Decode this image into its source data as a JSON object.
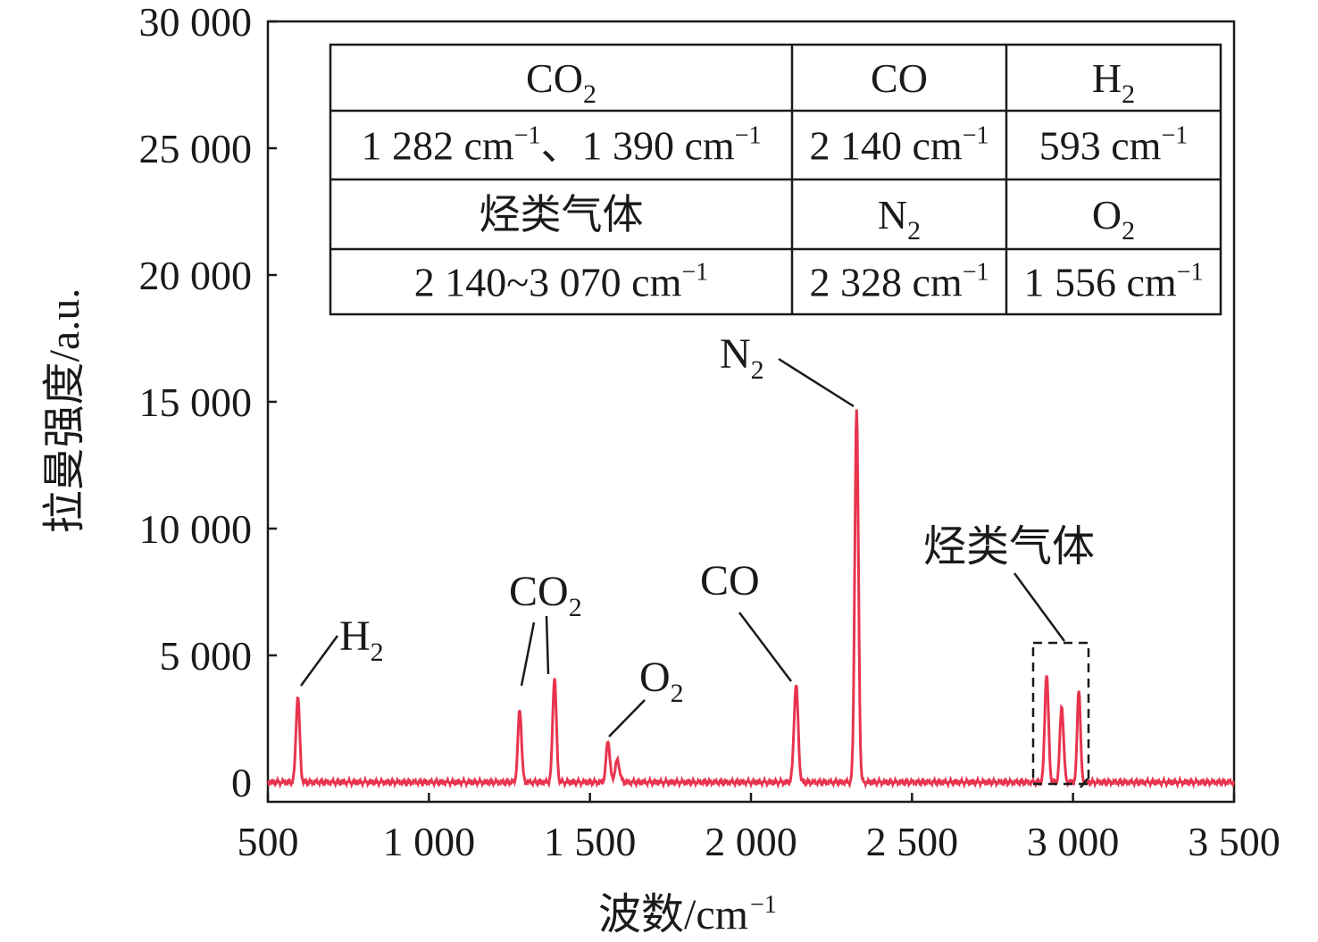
{
  "chart_data": {
    "type": "line",
    "xlabel": "波数/cm",
    "xlabel_sup": "−1",
    "ylabel": "拉曼强度/a.u.",
    "xlim": [
      500,
      3500
    ],
    "ylim": [
      0,
      30000
    ],
    "x_ticks": [
      500,
      1000,
      1500,
      2000,
      2500,
      3000,
      3500
    ],
    "x_tick_labels": [
      "500",
      "1 000",
      "1 500",
      "2 000",
      "2 500",
      "3 000",
      "3 500"
    ],
    "y_ticks": [
      0,
      5000,
      10000,
      15000,
      20000,
      25000,
      30000
    ],
    "y_tick_labels": [
      "0",
      "5 000",
      "10 000",
      "15 000",
      "20 000",
      "25 000",
      "30 000"
    ],
    "grid": false,
    "line_color": "#e8344e",
    "baseline": 0,
    "peaks": [
      {
        "x": 593,
        "y": 3400,
        "w": 8
      },
      {
        "x": 1282,
        "y": 2850,
        "w": 8
      },
      {
        "x": 1390,
        "y": 4150,
        "w": 8
      },
      {
        "x": 1556,
        "y": 1650,
        "w": 8
      },
      {
        "x": 1585,
        "y": 850,
        "w": 10
      },
      {
        "x": 2140,
        "y": 3850,
        "w": 9
      },
      {
        "x": 2328,
        "y": 14700,
        "w": 8
      },
      {
        "x": 2918,
        "y": 4300,
        "w": 8
      },
      {
        "x": 2965,
        "y": 3000,
        "w": 8
      },
      {
        "x": 3018,
        "y": 3700,
        "w": 7
      }
    ],
    "annotations": [
      {
        "text": "H",
        "sub": "2",
        "tx": 605,
        "ty": 3600,
        "lx1": 660,
        "ly1": 5800,
        "lx2": 600,
        "ly2": 3700,
        "label_x": 630,
        "label_y": 5200
      },
      {
        "text": "CO",
        "sub": "2",
        "label_x": 1200,
        "label_y": 6400
      },
      {
        "text": "O",
        "sub": "2",
        "label_x": 1600,
        "label_y": 3300
      },
      {
        "text": "CO",
        "sub": "",
        "label_x": 2040,
        "label_y": 7500
      },
      {
        "text": "N",
        "sub": "2",
        "label_x": 2300,
        "label_y": 16300
      },
      {
        "text": "烃类气体",
        "sub": "",
        "label_x": 2950,
        "label_y": 8800
      }
    ]
  },
  "inset_table": {
    "rows": [
      [
        {
          "t": "CO",
          "s": "2"
        },
        {
          "t": "CO",
          "s": ""
        },
        {
          "t": "H",
          "s": "2"
        }
      ],
      [
        {
          "t": "1 282 cm",
          "u": "−1",
          "t2": "、1 390 cm",
          "u2": "−1"
        },
        {
          "t": "2 140 cm",
          "u": "−1"
        },
        {
          "t": "593 cm",
          "u": "−1"
        }
      ],
      [
        {
          "t": "烃类气体",
          "s": ""
        },
        {
          "t": "N",
          "s": "2"
        },
        {
          "t": "O",
          "s": "2"
        }
      ],
      [
        {
          "t": "2 140~3 070 cm",
          "u": "−1"
        },
        {
          "t": "2 328 cm",
          "u": "−1"
        },
        {
          "t": "1 556 cm",
          "u": "−1"
        }
      ]
    ]
  }
}
